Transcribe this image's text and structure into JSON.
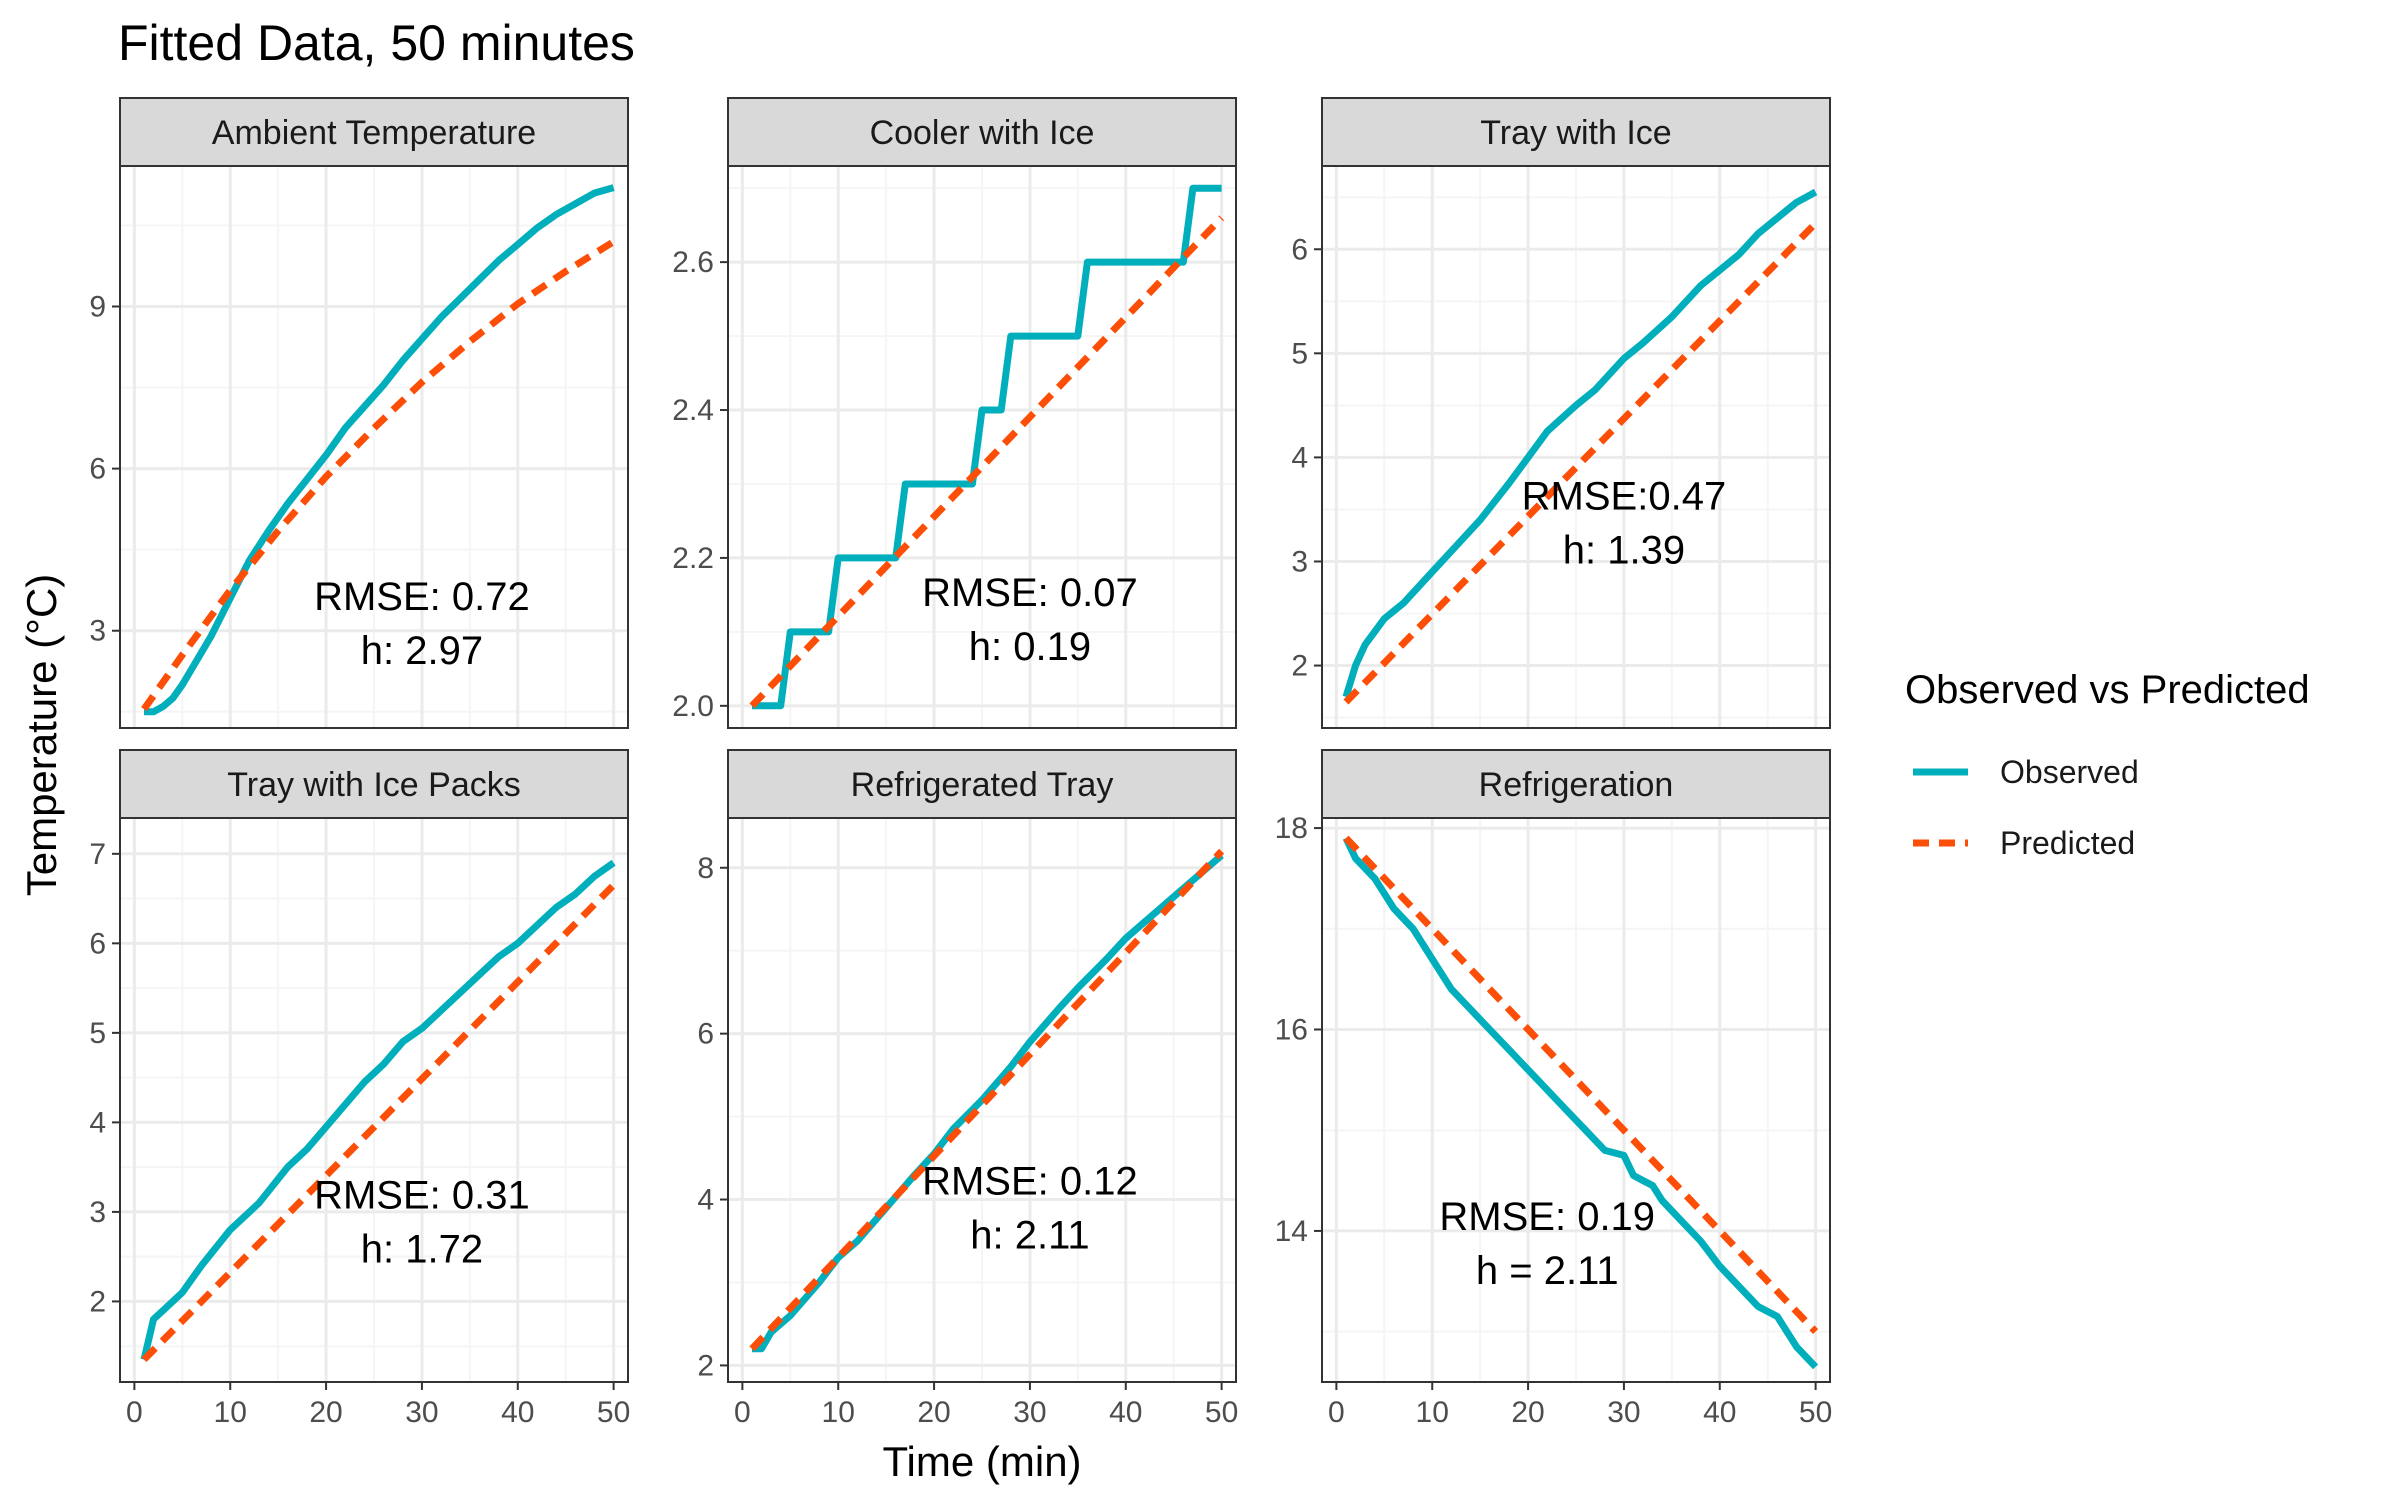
{
  "chart_data": {
    "type": "line",
    "title": "Fitted Data, 50 minutes",
    "xlabel": "Time (min)",
    "ylabel": "Temperature (°C)",
    "grid": true,
    "legend": {
      "title": "Observed vs Predicted",
      "placement": "right",
      "entries": [
        {
          "label": "Observed",
          "style": "solid"
        },
        {
          "label": "Predicted",
          "style": "dashed"
        }
      ]
    },
    "colors": {
      "observed": "#00AFBB",
      "predicted": "#FC4E07",
      "strip_bg": "#d9d9d9",
      "grid_major": "#ebebeb",
      "grid_minor": "#f5f5f5",
      "border": "#333333"
    },
    "x_ticks": [
      0,
      10,
      20,
      30,
      40,
      50
    ],
    "xlim": [
      -1.5,
      51.5
    ],
    "panels": [
      {
        "title": "Ambient Temperature",
        "annotation": [
          "RMSE: 0.72",
          "h: 2.97"
        ],
        "annotation_pos": [
          30,
          2.9
        ],
        "ylim": [
          1.2,
          11.6
        ],
        "y_ticks": [
          3,
          6,
          9
        ],
        "observed": {
          "x": [
            1,
            2,
            3,
            4,
            5,
            6,
            8,
            10,
            12,
            14,
            16,
            18,
            20,
            22,
            24,
            26,
            28,
            30,
            32,
            34,
            36,
            38,
            40,
            42,
            44,
            46,
            48,
            50
          ],
          "y": [
            1.5,
            1.5,
            1.6,
            1.75,
            2.0,
            2.3,
            2.9,
            3.6,
            4.3,
            4.85,
            5.35,
            5.8,
            6.25,
            6.75,
            7.15,
            7.55,
            8.0,
            8.4,
            8.8,
            9.15,
            9.5,
            9.85,
            10.15,
            10.45,
            10.7,
            10.9,
            11.1,
            11.2
          ]
        },
        "predicted": {
          "x": [
            1,
            5,
            10,
            15,
            20,
            25,
            30,
            35,
            40,
            45,
            50
          ],
          "y": [
            1.55,
            2.55,
            3.75,
            4.85,
            5.85,
            6.75,
            7.6,
            8.35,
            9.05,
            9.65,
            10.2
          ]
        }
      },
      {
        "title": "Cooler with Ice",
        "annotation": [
          "RMSE: 0.07",
          "h: 0.19"
        ],
        "annotation_pos": [
          30,
          2.1
        ],
        "ylim": [
          1.97,
          2.73
        ],
        "y_ticks": [
          2.0,
          2.2,
          2.4,
          2.6
        ],
        "y_tick_labels": [
          "2.0",
          "2.2",
          "2.4",
          "2.6"
        ],
        "observed": {
          "x": [
            1,
            2,
            4,
            5,
            9,
            10,
            16,
            17,
            24,
            25,
            27,
            28,
            35,
            36,
            46,
            47,
            50
          ],
          "y": [
            2.0,
            2.0,
            2.0,
            2.1,
            2.1,
            2.2,
            2.2,
            2.3,
            2.3,
            2.4,
            2.4,
            2.5,
            2.5,
            2.6,
            2.6,
            2.7,
            2.7
          ]
        },
        "predicted": {
          "x": [
            1,
            50
          ],
          "y": [
            2.0,
            2.66
          ]
        }
      },
      {
        "title": "Tray with Ice",
        "annotation": [
          "RMSE:0.47",
          "h: 1.39"
        ],
        "annotation_pos": [
          30,
          3.25
        ],
        "ylim": [
          1.4,
          6.8
        ],
        "y_ticks": [
          2,
          3,
          4,
          5,
          6
        ],
        "observed": {
          "x": [
            1,
            2,
            3,
            5,
            7,
            10,
            12,
            15,
            18,
            20,
            22,
            25,
            27,
            30,
            32,
            35,
            38,
            40,
            42,
            44,
            46,
            48,
            50
          ],
          "y": [
            1.7,
            2.0,
            2.2,
            2.45,
            2.6,
            2.9,
            3.1,
            3.4,
            3.75,
            4.0,
            4.25,
            4.5,
            4.65,
            4.95,
            5.1,
            5.35,
            5.65,
            5.8,
            5.95,
            6.15,
            6.3,
            6.45,
            6.55
          ]
        },
        "predicted": {
          "x": [
            1,
            50
          ],
          "y": [
            1.65,
            6.25
          ]
        }
      },
      {
        "title": "Tray with Ice Packs",
        "annotation": [
          "RMSE: 0.31",
          "h: 1.72"
        ],
        "annotation_pos": [
          30,
          2.75
        ],
        "ylim": [
          1.1,
          7.4
        ],
        "y_ticks": [
          2,
          3,
          4,
          5,
          6,
          7
        ],
        "observed": {
          "x": [
            1,
            2,
            3,
            5,
            7,
            10,
            13,
            16,
            18,
            20,
            22,
            24,
            26,
            28,
            30,
            32,
            34,
            36,
            38,
            40,
            42,
            44,
            46,
            48,
            50
          ],
          "y": [
            1.35,
            1.8,
            1.9,
            2.1,
            2.4,
            2.8,
            3.1,
            3.5,
            3.7,
            3.95,
            4.2,
            4.45,
            4.65,
            4.9,
            5.05,
            5.25,
            5.45,
            5.65,
            5.85,
            6.0,
            6.2,
            6.4,
            6.55,
            6.75,
            6.9
          ]
        },
        "predicted": {
          "x": [
            1,
            50
          ],
          "y": [
            1.35,
            6.65
          ]
        }
      },
      {
        "title": "Refrigerated Tray",
        "annotation": [
          "RMSE: 0.12",
          "h: 2.11"
        ],
        "annotation_pos": [
          30,
          3.75
        ],
        "ylim": [
          1.8,
          8.6
        ],
        "y_ticks": [
          2,
          4,
          6,
          8
        ],
        "observed": {
          "x": [
            1,
            2,
            3,
            5,
            8,
            10,
            12,
            15,
            18,
            20,
            22,
            25,
            28,
            30,
            33,
            35,
            38,
            40,
            42,
            45,
            48,
            50
          ],
          "y": [
            2.2,
            2.2,
            2.4,
            2.6,
            3.0,
            3.3,
            3.5,
            3.9,
            4.3,
            4.55,
            4.85,
            5.2,
            5.6,
            5.9,
            6.3,
            6.55,
            6.9,
            7.15,
            7.35,
            7.65,
            7.95,
            8.15
          ]
        },
        "predicted": {
          "x": [
            1,
            50
          ],
          "y": [
            2.2,
            8.2
          ]
        }
      },
      {
        "title": "Refrigeration",
        "annotation": [
          "RMSE: 0.19",
          "h = 2.11"
        ],
        "annotation_pos": [
          22,
          13.75
        ],
        "ylim": [
          12.5,
          18.1
        ],
        "y_ticks": [
          14,
          16,
          18
        ],
        "observed": {
          "x": [
            1,
            2,
            4,
            6,
            8,
            10,
            12,
            14,
            16,
            18,
            20,
            22,
            24,
            26,
            28,
            30,
            31,
            32,
            33,
            34,
            36,
            38,
            40,
            42,
            44,
            46,
            47,
            48,
            49,
            50
          ],
          "y": [
            17.9,
            17.7,
            17.5,
            17.2,
            17.0,
            16.7,
            16.4,
            16.2,
            16.0,
            15.8,
            15.6,
            15.4,
            15.2,
            15.0,
            14.8,
            14.75,
            14.55,
            14.5,
            14.45,
            14.3,
            14.1,
            13.9,
            13.65,
            13.45,
            13.25,
            13.15,
            13.0,
            12.85,
            12.75,
            12.65
          ]
        },
        "predicted": {
          "x": [
            1,
            50
          ],
          "y": [
            17.9,
            13.0
          ]
        }
      }
    ]
  }
}
